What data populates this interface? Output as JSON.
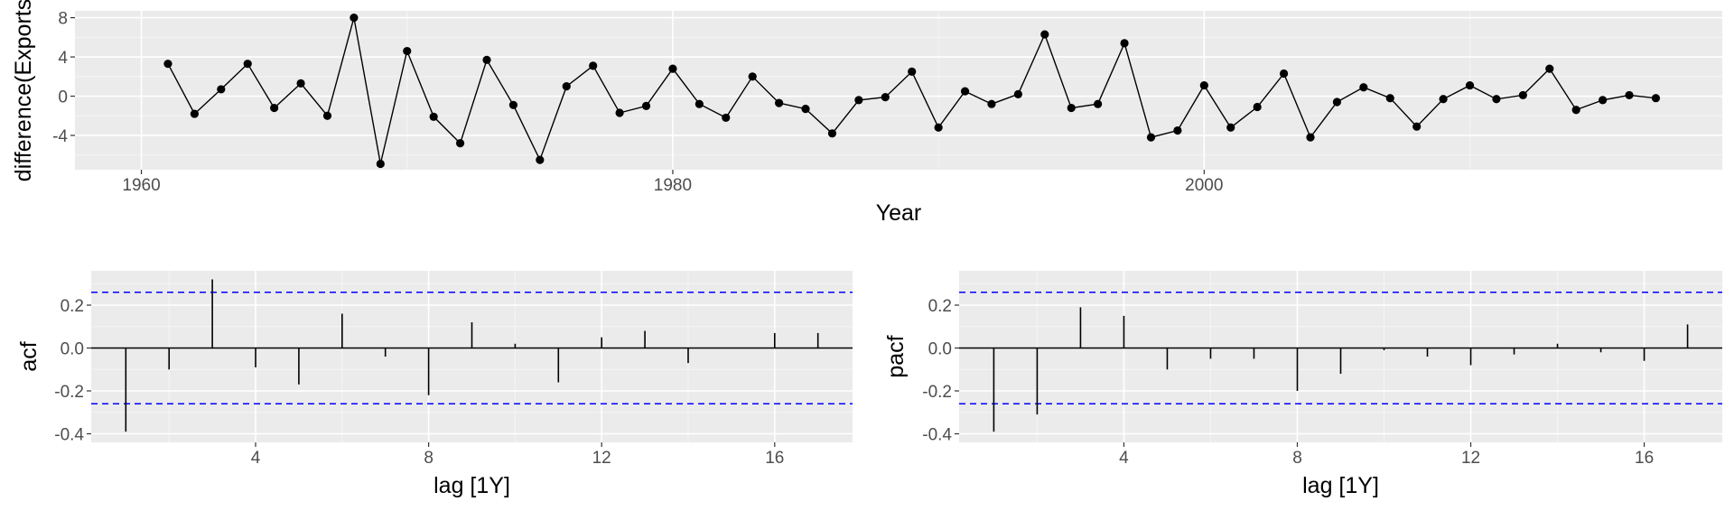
{
  "chart_data": [
    {
      "id": "time-series",
      "type": "line",
      "xlabel": "Year",
      "ylabel": "difference(Exports",
      "xlim": [
        1957.5,
        2019.5
      ],
      "ylim": [
        -7.5,
        8.7
      ],
      "x_ticks": [
        1960,
        1980,
        2000
      ],
      "y_ticks": [
        -4,
        0,
        4,
        8
      ],
      "grid": true,
      "x": [
        1961,
        1962,
        1963,
        1964,
        1965,
        1966,
        1967,
        1968,
        1969,
        1970,
        1971,
        1972,
        1973,
        1974,
        1975,
        1976,
        1977,
        1978,
        1979,
        1980,
        1981,
        1982,
        1983,
        1984,
        1985,
        1986,
        1987,
        1988,
        1989,
        1990,
        1991,
        1992,
        1993,
        1994,
        1995,
        1996,
        1997,
        1998,
        1999,
        2000,
        2001,
        2002,
        2003,
        2004,
        2005,
        2006,
        2007,
        2008,
        2009,
        2010,
        2011,
        2012,
        2013,
        2014,
        2015,
        2016,
        2017
      ],
      "values": [
        3.3,
        -1.8,
        0.7,
        3.3,
        -1.2,
        1.3,
        -2.0,
        8.0,
        -6.9,
        4.6,
        -2.1,
        -4.8,
        3.7,
        -0.9,
        -6.5,
        1.0,
        3.1,
        -1.7,
        -1.0,
        2.8,
        -0.8,
        -2.2,
        2.0,
        -0.7,
        -1.3,
        -3.8,
        -0.4,
        -0.1,
        2.5,
        -3.2,
        0.5,
        -0.8,
        0.2,
        6.3,
        -1.2,
        -0.8,
        5.4,
        -4.2,
        -3.5,
        1.1,
        -3.2,
        -1.1,
        2.3,
        -4.2,
        -0.6,
        0.9,
        -0.2,
        -3.1,
        -0.3,
        1.1,
        -0.3,
        0.1,
        2.8,
        -1.4,
        -0.4,
        0.1,
        -0.2
      ]
    },
    {
      "id": "acf",
      "type": "bar",
      "xlabel": "lag [1Y]",
      "ylabel": "acf",
      "xlim": [
        0.2,
        17.8
      ],
      "ylim": [
        -0.44,
        0.36
      ],
      "x_ticks": [
        4,
        8,
        12,
        16
      ],
      "y_ticks": [
        -0.4,
        -0.2,
        0.0,
        0.2
      ],
      "y_tick_labels": [
        "-0.4",
        "-0.2",
        "0.0",
        "0.2"
      ],
      "confidence_bound": 0.26,
      "grid": true,
      "categories": [
        1,
        2,
        3,
        4,
        5,
        6,
        7,
        8,
        9,
        10,
        11,
        12,
        13,
        14,
        15,
        16,
        17
      ],
      "values": [
        -0.39,
        -0.1,
        0.32,
        -0.09,
        -0.17,
        0.16,
        -0.04,
        -0.22,
        0.12,
        0.02,
        -0.16,
        0.05,
        0.08,
        -0.07,
        0.0,
        0.07,
        0.07
      ]
    },
    {
      "id": "pacf",
      "type": "bar",
      "xlabel": "lag [1Y]",
      "ylabel": "pacf",
      "xlim": [
        0.2,
        17.8
      ],
      "ylim": [
        -0.44,
        0.36
      ],
      "x_ticks": [
        4,
        8,
        12,
        16
      ],
      "y_ticks": [
        -0.4,
        -0.2,
        0.0,
        0.2
      ],
      "y_tick_labels": [
        "-0.4",
        "-0.2",
        "0.0",
        "0.2"
      ],
      "confidence_bound": 0.26,
      "grid": true,
      "categories": [
        1,
        2,
        3,
        4,
        5,
        6,
        7,
        8,
        9,
        10,
        11,
        12,
        13,
        14,
        15,
        16,
        17
      ],
      "values": [
        -0.39,
        -0.31,
        0.19,
        0.15,
        -0.1,
        -0.05,
        -0.05,
        -0.2,
        -0.12,
        -0.01,
        -0.04,
        -0.08,
        -0.03,
        0.02,
        -0.02,
        -0.06,
        0.11
      ]
    }
  ]
}
